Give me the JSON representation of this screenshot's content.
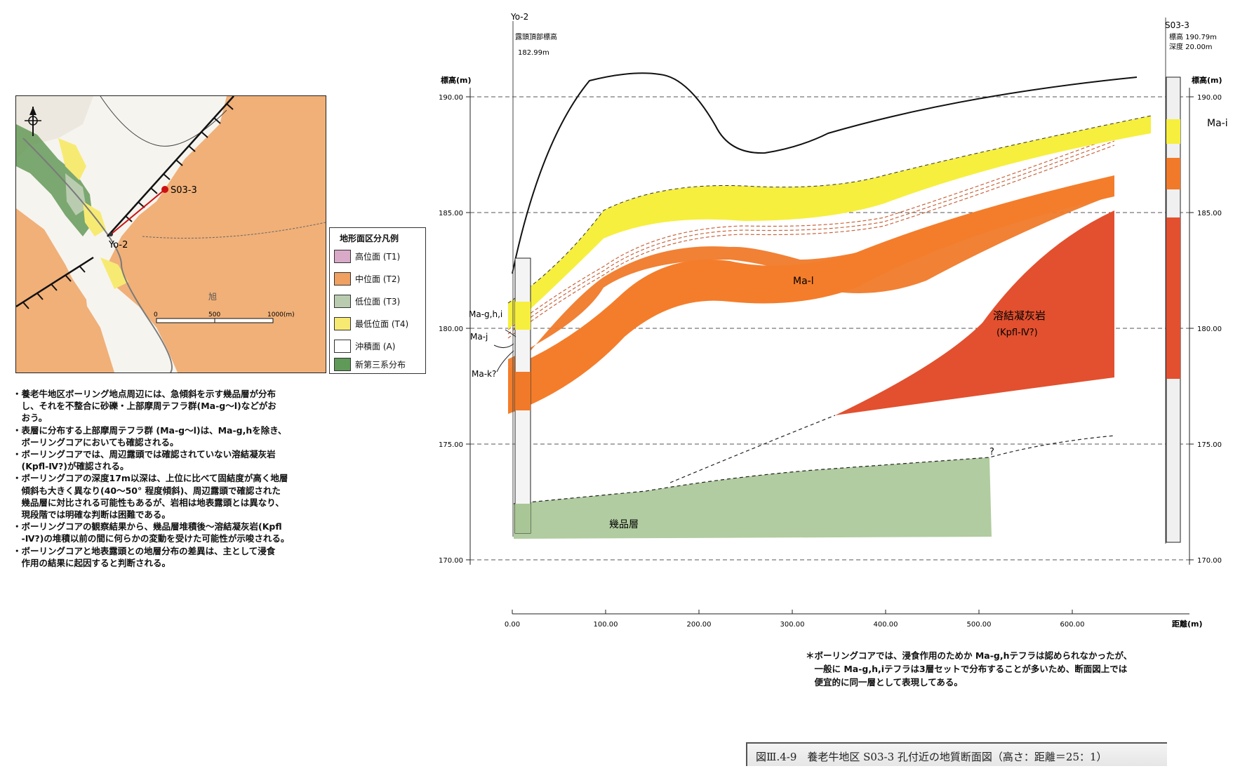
{
  "map": {
    "point_s03": "S03-3",
    "point_yo2": "Yo-2",
    "place_label": "旭",
    "scale_labels": [
      "0",
      "500",
      "1000(m)"
    ]
  },
  "legend": {
    "title": "地形面区分凡例",
    "items": [
      {
        "label": "高位面 (T1)",
        "color": "#d9a9c8"
      },
      {
        "label": "中位面 (T2)",
        "color": "#f0a060"
      },
      {
        "label": "低位面 (T3)",
        "color": "#b9ccb0"
      },
      {
        "label": "最低位面 (T4)",
        "color": "#f7ea73"
      },
      {
        "label": "沖積面 (A)",
        "color": "#ffffff"
      },
      {
        "label": "新第三系分布",
        "color": "#5f9a58"
      }
    ]
  },
  "notes": [
    "・養老牛地区ボーリング地点周辺には、急傾斜を示す幾品層が分布",
    "　し、それを不整合に砂礫・上部摩周テフラ群(Ma-g〜l)などがお",
    "　おう。",
    "・表層に分布する上部摩周テフラ群 (Ma-g〜l)は、Ma-g,hを除き、",
    "　ボーリングコアにおいても確認される。",
    "・ボーリングコアでは、周辺露頭では確認されていない溶結凝灰岩",
    "　(Kpfl-Ⅳ?)が確認される。",
    "・ボーリングコアの深度17m以深は、上位に比べて固結度が高く地層",
    "　傾斜も大きく異なり(40〜50° 程度傾斜)、周辺露頭で確認された",
    "　幾品層に対比される可能性もあるが、岩相は地表露頭とは異なり、",
    "　現段階では明確な判断は困難である。",
    "・ボーリングコアの観察結果から、幾品層堆積後〜溶結凝灰岩(Kpfl",
    "　-Ⅳ?)の堆積以前の間に何らかの変動を受けた可能性が示唆される。",
    "・ボーリングコアと地表露頭との地層分布の差異は、主として浸食",
    "　作用の結果に起因すると判断される。"
  ],
  "section": {
    "y_axis_label_left": "標高(m)",
    "y_axis_label_right": "標高(m)",
    "x_axis_label": "距離(m)",
    "y_ticks": [
      "190.00",
      "185.00",
      "180.00",
      "175.00",
      "170.00"
    ],
    "x_ticks": [
      "0.00",
      "100.00",
      "200.00",
      "300.00",
      "400.00",
      "500.00",
      "600.00"
    ],
    "yo2": {
      "name": "Yo-2",
      "sub": "露頭頂部標高",
      "value": "182.99m"
    },
    "s033": {
      "name": "S03-3",
      "line1": "標高 190.79m",
      "line2": "深度 20.00m"
    },
    "labels": {
      "ma_i": "Ma-i",
      "ma_l": "Ma-l",
      "ma_ghi": "Ma-g,h,i",
      "ma_j": "Ma-j",
      "ma_k": "Ma-k?",
      "tuff1": "溶結凝灰岩",
      "tuff2": "(Kpfl-Ⅳ?)",
      "ikuhin": "幾品層",
      "question": "?"
    }
  },
  "footnote": [
    "＊ボーリングコアでは、浸食作用のためか Ma-g,hテフラは認められなかったが、",
    "　一般に Ma-g,h,iテフラは3層セットで分布することが多いため、断面図上では",
    "　便宜的に同一層として表現してある。"
  ],
  "caption": "図Ⅲ.4-9　養老牛地区 S03-3 孔付近の地質断面図（高さ：距離＝25：1）"
}
